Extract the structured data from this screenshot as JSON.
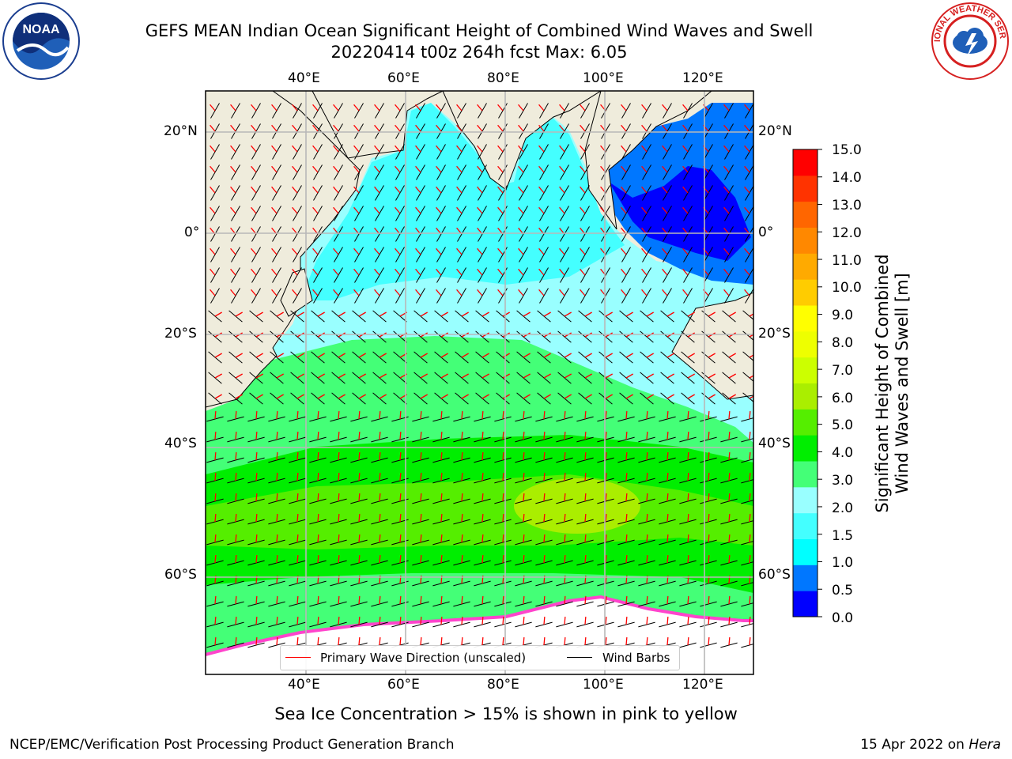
{
  "title": {
    "line1": "GEFS MEAN Indian Ocean Significant Height of Combined Wind Waves and Swell",
    "line2": "20220414 t00z 264h fcst   Max: 6.05"
  },
  "logos": {
    "left": "noaa-logo",
    "right": "national-weather-service-logo",
    "left_text": "NOAA",
    "right_text": "NATIONAL WEATHER SERVICE"
  },
  "map": {
    "lon_ticks": [
      "40°E",
      "60°E",
      "80°E",
      "100°E",
      "120°E"
    ],
    "lat_ticks_left": [
      "20°N",
      "0°",
      "20°S",
      "40°S",
      "60°S"
    ],
    "lat_ticks_right": [
      "20°N",
      "0°",
      "20°S",
      "40°S",
      "60°S"
    ],
    "lon_range": [
      20,
      130
    ],
    "lat_range": [
      -75,
      28
    ],
    "land_color": "#efecdc",
    "grid": true
  },
  "legend": {
    "wave_label": "Primary Wave Direction (unscaled)",
    "wind_label": "Wind Barbs",
    "wave_color": "#ff0000",
    "wind_color": "#000000"
  },
  "colorbar": {
    "title_line1": "Significant Height of Combined",
    "title_line2": "Wind Waves and Swell [m]",
    "ticks": [
      "15.0",
      "14.0",
      "13.0",
      "12.0",
      "11.0",
      "10.0",
      "9.0",
      "8.0",
      "7.0",
      "6.0",
      "5.0",
      "4.0",
      "3.0",
      "2.0",
      "1.5",
      "1.0",
      "0.5",
      "0.0"
    ],
    "colors": [
      "#0000ff",
      "#0077ff",
      "#00ffff",
      "#44ffff",
      "#99ffff",
      "#44ff77",
      "#00ee00",
      "#55ee00",
      "#aaee00",
      "#ccff00",
      "#eeff00",
      "#ffff00",
      "#ffcc00",
      "#ffaa00",
      "#ff8800",
      "#ff6600",
      "#ff3300",
      "#ff0000"
    ]
  },
  "caption": "Sea Ice Concentration > 15% is shown in pink to yellow",
  "footer": {
    "left": "NCEP/EMC/Verification Post Processing Product Generation Branch",
    "right_prefix": "15 Apr 2022 on ",
    "right_host": "Hera"
  }
}
